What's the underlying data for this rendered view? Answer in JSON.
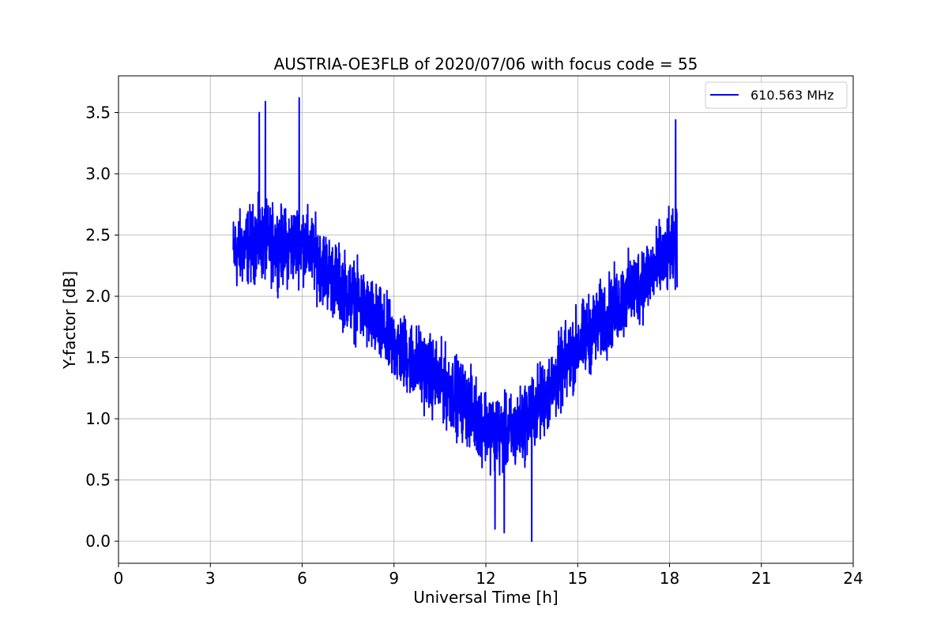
{
  "chart_data": {
    "type": "line",
    "title": "AUSTRIA-OE3FLB of 2020/07/06 with focus code = 55",
    "xlabel": "Universal Time [h]",
    "ylabel": "Y-factor [dB]",
    "xlim": [
      0,
      24
    ],
    "ylim": [
      -0.18,
      3.8
    ],
    "xticks": [
      0,
      3,
      6,
      9,
      12,
      15,
      18,
      21,
      24
    ],
    "xtick_labels": [
      "0",
      "3",
      "6",
      "9",
      "12",
      "15",
      "18",
      "21",
      "24"
    ],
    "yticks": [
      0.0,
      0.5,
      1.0,
      1.5,
      2.0,
      2.5,
      3.0,
      3.5
    ],
    "ytick_labels": [
      "0.0",
      "0.5",
      "1.0",
      "1.5",
      "2.0",
      "2.5",
      "3.0",
      "3.5"
    ],
    "grid": true,
    "legend_position": "top-right",
    "series": [
      {
        "name": "610.563 MHz",
        "color": "#0000ff",
        "x_range": [
          3.75,
          18.25
        ],
        "envelope": {
          "x": [
            3.75,
            4.5,
            5.5,
            6.0,
            7.0,
            8.0,
            9.0,
            10.0,
            11.0,
            12.0,
            12.5,
            13.0,
            14.0,
            15.0,
            16.0,
            17.0,
            18.0,
            18.25
          ],
          "y": [
            2.35,
            2.45,
            2.4,
            2.45,
            2.15,
            1.9,
            1.6,
            1.4,
            1.2,
            0.95,
            0.85,
            0.9,
            1.2,
            1.6,
            1.85,
            2.1,
            2.35,
            2.4
          ]
        },
        "noise_amplitude": 0.45,
        "peaks": [
          {
            "x": 4.8,
            "y": 3.59
          },
          {
            "x": 5.9,
            "y": 3.62
          },
          {
            "x": 18.2,
            "y": 3.44
          },
          {
            "x": 4.6,
            "y": 3.5
          }
        ],
        "troughs": [
          {
            "x": 13.5,
            "y": 0.0
          },
          {
            "x": 12.6,
            "y": 0.07
          },
          {
            "x": 12.3,
            "y": 0.1
          }
        ]
      }
    ]
  }
}
